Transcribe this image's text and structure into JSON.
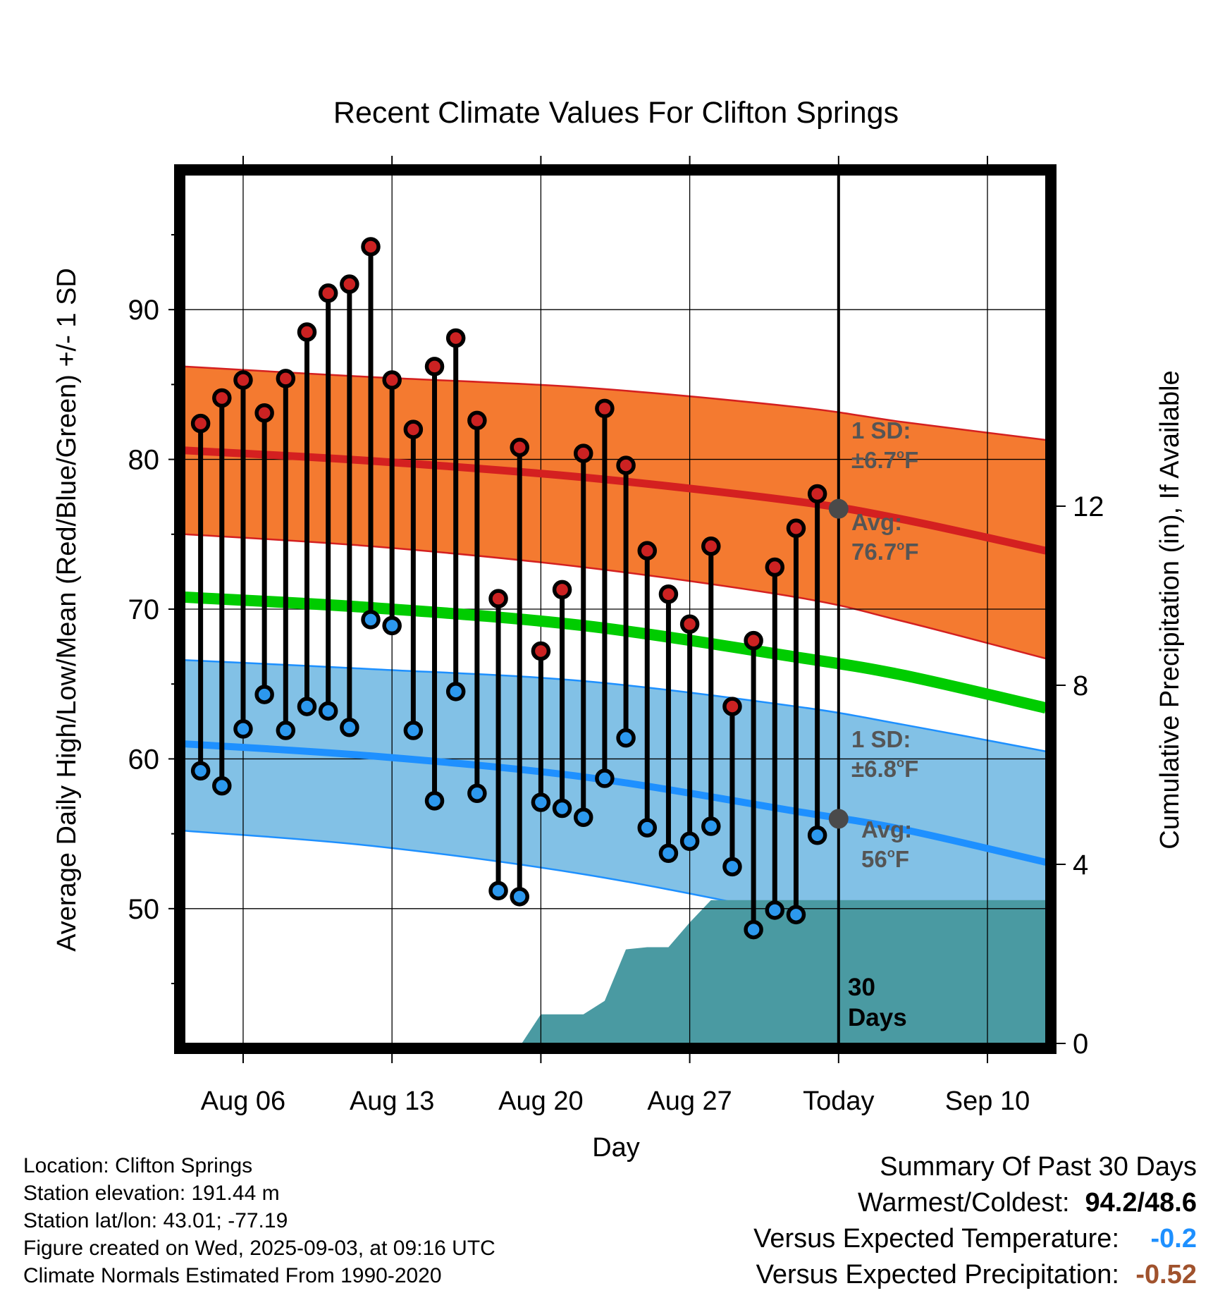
{
  "chart_data": {
    "type": "line",
    "title": "Recent Climate Values For Clifton Springs",
    "xlabel": "Day",
    "ylabel": "Average Daily High/Low/Mean (Red/Blue/Green) +/- 1 SD",
    "y2label": "Cumulative Precipitation (in), If Available",
    "x_tick_labels": [
      "Aug 06",
      "Aug 13",
      "Aug 20",
      "Aug 27",
      "Today",
      "Sep 10"
    ],
    "x_tick_days": [
      4,
      11,
      18,
      25,
      32,
      39
    ],
    "x_range_days": [
      1.25,
      41.75
    ],
    "today_day": 32,
    "ylim": [
      41,
      99
    ],
    "y_ticks": [
      50,
      60,
      70,
      80,
      90
    ],
    "y_minor_ticks": [
      45,
      55,
      65,
      75,
      85,
      95
    ],
    "y2lim": [
      0,
      19.4
    ],
    "y2_ticks": [
      0,
      4,
      8,
      12
    ],
    "grid": true,
    "normals": {
      "days": [
        1.25,
        10,
        20,
        30,
        35,
        41.75
      ],
      "high_mean": [
        80.6,
        79.9,
        78.8,
        77.2,
        76.0,
        73.9
      ],
      "high_upper": [
        86.2,
        85.5,
        84.8,
        83.5,
        82.5,
        81.3
      ],
      "high_lower": [
        75.0,
        74.2,
        72.8,
        70.8,
        69.2,
        66.7
      ],
      "mean": [
        70.8,
        70.1,
        68.9,
        66.8,
        65.6,
        63.4
      ],
      "low_mean": [
        61.0,
        60.2,
        58.8,
        56.5,
        55.3,
        53.1
      ],
      "low_upper": [
        66.6,
        66.0,
        65.2,
        63.5,
        62.3,
        60.5
      ],
      "low_lower": [
        55.2,
        54.2,
        52.3,
        49.6,
        48.2,
        46.0
      ]
    },
    "observed": {
      "days": [
        2,
        3,
        4,
        5,
        6,
        7,
        8,
        9,
        10,
        11,
        12,
        13,
        14,
        15,
        16,
        17,
        18,
        19,
        20,
        21,
        22,
        23,
        24,
        25,
        26,
        27,
        28,
        29,
        30,
        31
      ],
      "highs": [
        82.4,
        84.1,
        85.3,
        83.1,
        85.4,
        88.5,
        91.1,
        91.7,
        94.2,
        85.3,
        82.0,
        86.2,
        88.1,
        82.6,
        70.7,
        80.8,
        67.2,
        71.3,
        80.4,
        83.4,
        79.6,
        73.9,
        71.0,
        69.0,
        74.2,
        63.5,
        67.9,
        72.8,
        75.4,
        77.7
      ],
      "lows": [
        59.2,
        58.2,
        62.0,
        64.3,
        61.9,
        63.5,
        63.2,
        62.1,
        69.3,
        68.9,
        61.9,
        57.2,
        64.5,
        57.7,
        51.2,
        50.8,
        57.1,
        56.7,
        56.1,
        58.7,
        61.4,
        55.4,
        53.7,
        54.5,
        55.5,
        52.8,
        48.6,
        49.9,
        49.6,
        54.9
      ]
    },
    "precip_cumulative": {
      "days": [
        17.1,
        18,
        20,
        21,
        22,
        23,
        24,
        25,
        26,
        26.9,
        41.75
      ],
      "values": [
        0,
        0.65,
        0.65,
        0.95,
        2.1,
        2.15,
        2.15,
        2.7,
        3.2,
        3.2,
        3.2
      ]
    },
    "annotations": {
      "high_sd_line1": "1 SD:",
      "high_sd_line2": "±6.7",
      "high_sd_unit": "F",
      "high_avg_line1": "Avg:",
      "high_avg_line2": "76.7",
      "high_avg_unit": "F",
      "low_sd_line1": "1 SD:",
      "low_sd_line2": "±6.8",
      "low_sd_unit": "F",
      "low_avg_line1": "Avg:",
      "low_avg_line2": "56",
      "low_avg_unit": "F",
      "degree_mark": "o",
      "today_avg_high": 76.7,
      "today_avg_low": 56,
      "days_count_line1": "30",
      "days_count_line2": "Days"
    },
    "colors": {
      "high_band": "#f47a30",
      "high_line": "#d42020",
      "high_band_edge": "#d42020",
      "low_band": "#82c1e6",
      "low_line": "#1e90ff",
      "low_band_edge": "#1e90ff",
      "mean_line": "#00cc00",
      "precip_fill": "#4a9aa2",
      "high_marker": "#cc2222",
      "low_marker": "#2c98ee",
      "avg_marker": "#4a4a4a",
      "annotation_text": "#555555"
    }
  },
  "footer": {
    "location": "Location: Clifton Springs",
    "elevation": "Station elevation: 191.44 m",
    "latlon": "Station lat/lon: 43.01; -77.19",
    "created": "Figure created on Wed, 2025-09-03, at 09:16 UTC",
    "normals": "Climate Normals Estimated From 1990-2020"
  },
  "summary": {
    "heading": "Summary Of Past 30 Days",
    "warmest_label": "Warmest/Coldest:",
    "warmest_value": "94.2/48.6",
    "temp_label": "Versus Expected Temperature:",
    "temp_value": "-0.2",
    "temp_color": "#1e90ff",
    "precip_label": "Versus Expected Precipitation:",
    "precip_value": "-0.52",
    "precip_color": "#a0522d"
  }
}
